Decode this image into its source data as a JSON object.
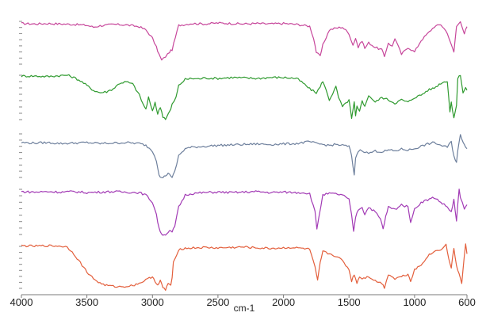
{
  "chart_data": {
    "type": "line",
    "title": "",
    "xlabel": "cm-1",
    "ylabel": "",
    "xlim": [
      4000,
      600
    ],
    "x_reversed": true,
    "x_ticks": [
      4000,
      3500,
      3000,
      2500,
      2000,
      1500,
      1000,
      600
    ],
    "x_tick_labels": [
      "4000",
      "3500",
      "3000",
      "2500",
      "2000",
      "1500",
      "1000",
      "600"
    ],
    "ylim": [
      0,
      1
    ],
    "grid": false,
    "legend": "none",
    "layout": "stacked",
    "series": [
      {
        "color": "#c7479b",
        "x": [
          4000,
          3900,
          3800,
          3700,
          3600,
          3500,
          3450,
          3400,
          3300,
          3200,
          3100,
          3050,
          3000,
          2970,
          2950,
          2930,
          2900,
          2870,
          2850,
          2800,
          2700,
          2600,
          2500,
          2400,
          2300,
          2200,
          2100,
          2000,
          1900,
          1850,
          1800,
          1770,
          1750,
          1720,
          1700,
          1650,
          1600,
          1550,
          1500,
          1470,
          1450,
          1430,
          1400,
          1380,
          1350,
          1300,
          1250,
          1230,
          1200,
          1170,
          1150,
          1100,
          1050,
          1000,
          950,
          900,
          850,
          800,
          750,
          720,
          700,
          680,
          650,
          620,
          600
        ],
        "y": [
          0.92,
          0.91,
          0.92,
          0.91,
          0.9,
          0.88,
          0.84,
          0.87,
          0.9,
          0.89,
          0.85,
          0.78,
          0.6,
          0.4,
          0.25,
          0.12,
          0.2,
          0.3,
          0.35,
          0.88,
          0.92,
          0.91,
          0.93,
          0.92,
          0.91,
          0.92,
          0.91,
          0.92,
          0.9,
          0.88,
          0.86,
          0.6,
          0.3,
          0.2,
          0.45,
          0.78,
          0.82,
          0.84,
          0.7,
          0.45,
          0.6,
          0.4,
          0.55,
          0.38,
          0.5,
          0.4,
          0.35,
          0.2,
          0.5,
          0.42,
          0.6,
          0.25,
          0.4,
          0.3,
          0.55,
          0.7,
          0.85,
          0.9,
          0.72,
          0.45,
          0.3,
          0.85,
          0.98,
          0.7,
          0.85
        ]
      },
      {
        "color": "#2f9a2f",
        "x": [
          4000,
          3900,
          3800,
          3700,
          3650,
          3600,
          3550,
          3500,
          3450,
          3400,
          3350,
          3300,
          3250,
          3200,
          3150,
          3100,
          3070,
          3050,
          3030,
          3000,
          2980,
          2960,
          2940,
          2920,
          2900,
          2880,
          2860,
          2850,
          2820,
          2800,
          2750,
          2700,
          2650,
          2600,
          2500,
          2400,
          2300,
          2200,
          2100,
          2000,
          1950,
          1900,
          1850,
          1800,
          1750,
          1720,
          1700,
          1650,
          1600,
          1580,
          1550,
          1500,
          1480,
          1460,
          1450,
          1440,
          1420,
          1400,
          1380,
          1350,
          1300,
          1250,
          1200,
          1150,
          1100,
          1050,
          1000,
          950,
          900,
          850,
          800,
          750,
          730,
          720,
          700,
          680,
          670,
          650,
          630,
          610,
          600
        ],
        "y": [
          0.95,
          0.95,
          0.94,
          0.96,
          0.97,
          0.92,
          0.85,
          0.75,
          0.65,
          0.6,
          0.62,
          0.68,
          0.8,
          0.83,
          0.78,
          0.55,
          0.35,
          0.25,
          0.5,
          0.2,
          0.4,
          0.15,
          0.3,
          0.1,
          0.05,
          0.15,
          0.25,
          0.35,
          0.5,
          0.75,
          0.88,
          0.9,
          0.89,
          0.91,
          0.9,
          0.92,
          0.91,
          0.9,
          0.92,
          0.92,
          0.91,
          0.9,
          0.8,
          0.68,
          0.6,
          0.72,
          0.85,
          0.45,
          0.72,
          0.5,
          0.3,
          0.45,
          0.05,
          0.4,
          0.1,
          0.3,
          0.2,
          0.45,
          0.3,
          0.55,
          0.4,
          0.5,
          0.45,
          0.38,
          0.45,
          0.4,
          0.5,
          0.55,
          0.65,
          0.7,
          0.8,
          0.85,
          0.2,
          0.4,
          0.05,
          0.35,
          0.9,
          0.98,
          0.6,
          0.7,
          0.65
        ]
      },
      {
        "color": "#6d7f9c",
        "x": [
          4000,
          3900,
          3800,
          3700,
          3600,
          3500,
          3400,
          3300,
          3200,
          3100,
          3050,
          3000,
          2970,
          2950,
          2930,
          2910,
          2890,
          2870,
          2850,
          2830,
          2800,
          2750,
          2700,
          2600,
          2500,
          2400,
          2300,
          2200,
          2100,
          2000,
          1900,
          1850,
          1800,
          1750,
          1700,
          1650,
          1600,
          1550,
          1500,
          1480,
          1470,
          1460,
          1450,
          1430,
          1400,
          1380,
          1350,
          1300,
          1250,
          1200,
          1150,
          1100,
          1050,
          1000,
          950,
          900,
          850,
          800,
          750,
          720,
          700,
          680,
          670,
          650,
          630,
          620,
          600
        ],
        "y": [
          0.78,
          0.77,
          0.78,
          0.76,
          0.77,
          0.78,
          0.76,
          0.77,
          0.78,
          0.76,
          0.72,
          0.6,
          0.4,
          0.1,
          0.02,
          0.05,
          0.1,
          0.12,
          0.03,
          0.15,
          0.5,
          0.65,
          0.68,
          0.7,
          0.72,
          0.73,
          0.74,
          0.75,
          0.74,
          0.75,
          0.76,
          0.78,
          0.8,
          0.76,
          0.74,
          0.72,
          0.74,
          0.72,
          0.7,
          0.5,
          0.25,
          0.1,
          0.45,
          0.6,
          0.62,
          0.58,
          0.55,
          0.6,
          0.58,
          0.62,
          0.6,
          0.64,
          0.62,
          0.65,
          0.7,
          0.75,
          0.78,
          0.72,
          0.68,
          0.8,
          0.5,
          0.35,
          0.6,
          0.95,
          0.8,
          0.75,
          0.65
        ]
      },
      {
        "color": "#a23bb5",
        "x": [
          4000,
          3900,
          3800,
          3700,
          3600,
          3500,
          3400,
          3300,
          3200,
          3100,
          3050,
          3000,
          2970,
          2950,
          2930,
          2910,
          2890,
          2870,
          2850,
          2830,
          2800,
          2750,
          2700,
          2600,
          2500,
          2400,
          2300,
          2200,
          2100,
          2000,
          1900,
          1850,
          1800,
          1760,
          1745,
          1730,
          1700,
          1650,
          1600,
          1550,
          1500,
          1480,
          1465,
          1450,
          1430,
          1400,
          1380,
          1350,
          1300,
          1260,
          1240,
          1220,
          1200,
          1150,
          1100,
          1050,
          1030,
          1000,
          950,
          900,
          850,
          800,
          750,
          720,
          700,
          680,
          660,
          650,
          620,
          600
        ],
        "y": [
          0.92,
          0.91,
          0.92,
          0.91,
          0.92,
          0.9,
          0.91,
          0.92,
          0.91,
          0.9,
          0.85,
          0.7,
          0.45,
          0.15,
          0.05,
          0.02,
          0.06,
          0.1,
          0.08,
          0.2,
          0.6,
          0.85,
          0.88,
          0.9,
          0.91,
          0.9,
          0.91,
          0.92,
          0.9,
          0.91,
          0.9,
          0.9,
          0.88,
          0.5,
          0.15,
          0.4,
          0.85,
          0.88,
          0.87,
          0.85,
          0.75,
          0.45,
          0.08,
          0.4,
          0.55,
          0.6,
          0.45,
          0.6,
          0.5,
          0.35,
          0.15,
          0.4,
          0.6,
          0.55,
          0.65,
          0.6,
          0.3,
          0.55,
          0.7,
          0.75,
          0.8,
          0.7,
          0.6,
          0.5,
          0.75,
          0.3,
          0.98,
          0.8,
          0.55,
          0.65
        ]
      },
      {
        "color": "#e35f3c",
        "x": [
          4000,
          3900,
          3800,
          3700,
          3650,
          3600,
          3550,
          3500,
          3450,
          3400,
          3350,
          3300,
          3250,
          3200,
          3150,
          3100,
          3050,
          3000,
          2980,
          2960,
          2940,
          2920,
          2900,
          2880,
          2860,
          2850,
          2840,
          2800,
          2750,
          2700,
          2600,
          2500,
          2400,
          2300,
          2200,
          2100,
          2000,
          1950,
          1900,
          1850,
          1800,
          1760,
          1740,
          1720,
          1700,
          1650,
          1600,
          1550,
          1500,
          1480,
          1460,
          1440,
          1420,
          1400,
          1350,
          1300,
          1250,
          1230,
          1200,
          1150,
          1100,
          1050,
          1030,
          1000,
          950,
          900,
          850,
          800,
          760,
          740,
          720,
          700,
          680,
          660,
          640,
          620,
          610,
          600
        ],
        "y": [
          0.98,
          0.97,
          0.98,
          0.97,
          0.95,
          0.8,
          0.6,
          0.4,
          0.25,
          0.15,
          0.1,
          0.08,
          0.07,
          0.08,
          0.1,
          0.15,
          0.22,
          0.3,
          0.2,
          0.1,
          0.2,
          0.05,
          0.0,
          0.15,
          0.1,
          0.25,
          0.6,
          0.9,
          0.92,
          0.93,
          0.94,
          0.93,
          0.94,
          0.95,
          0.93,
          0.92,
          0.93,
          0.94,
          0.93,
          0.92,
          0.9,
          0.5,
          0.2,
          0.6,
          0.85,
          0.8,
          0.75,
          0.65,
          0.45,
          0.2,
          0.35,
          0.15,
          0.3,
          0.25,
          0.3,
          0.2,
          0.15,
          0.05,
          0.35,
          0.25,
          0.3,
          0.35,
          0.2,
          0.45,
          0.55,
          0.75,
          0.85,
          0.9,
          1.0,
          0.7,
          0.5,
          0.9,
          0.55,
          0.35,
          0.15,
          0.75,
          1.0,
          0.8
        ]
      }
    ]
  }
}
